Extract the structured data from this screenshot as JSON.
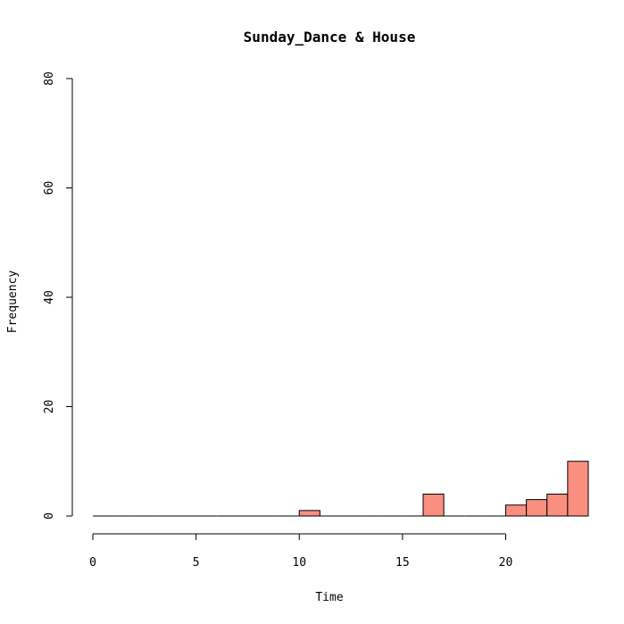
{
  "chart_data": {
    "type": "bar",
    "title": "Sunday_Dance & House",
    "xlabel": "Time",
    "ylabel": "Frequency",
    "xlim": [
      0,
      24
    ],
    "ylim": [
      0,
      80
    ],
    "xticks": [
      0,
      5,
      10,
      15,
      20
    ],
    "yticks": [
      0,
      20,
      40,
      60,
      80
    ],
    "bin_width": 1,
    "bins": [
      0,
      1,
      2,
      3,
      4,
      5,
      6,
      7,
      8,
      9,
      10,
      11,
      12,
      13,
      14,
      15,
      16,
      17,
      18,
      19,
      20,
      21,
      22,
      23
    ],
    "values": [
      0,
      0,
      0,
      0,
      0,
      0,
      0,
      0,
      0,
      0,
      1,
      0,
      0,
      0,
      0,
      0,
      4,
      0,
      0,
      0,
      2,
      3,
      4,
      10
    ],
    "bar_color": "#FA8F80",
    "grid": false
  }
}
